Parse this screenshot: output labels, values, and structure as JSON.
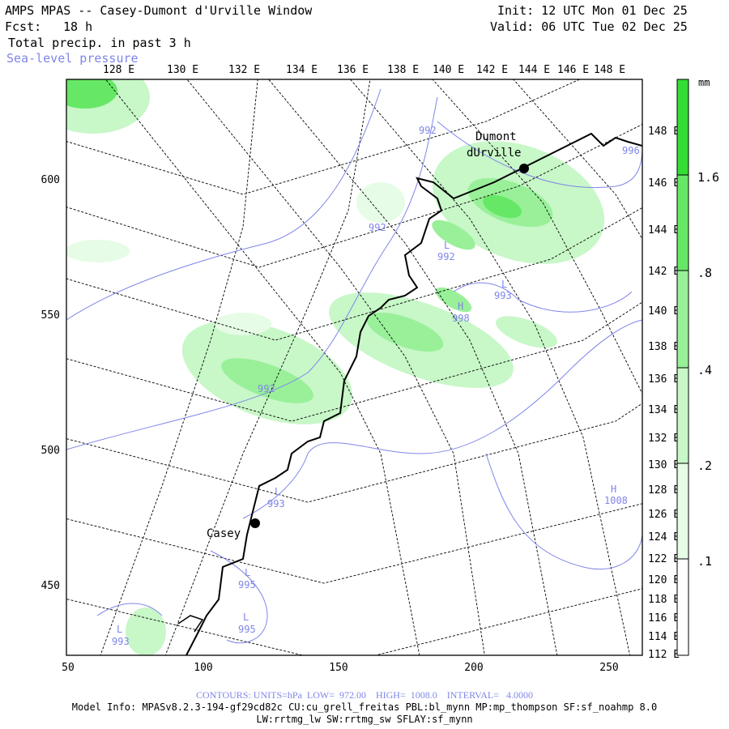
{
  "header": {
    "title": "AMPS MPAS -- Casey-Dumont d'Urville Window",
    "fcst_label": "Fcst:",
    "fcst_value": "18 h",
    "field": "Total precip. in past 3 h",
    "overlay": "Sea-level pressure",
    "init": "Init: 12 UTC Mon 01 Dec 25",
    "valid": "Valid: 06 UTC Tue 02 Dec 25"
  },
  "top_axis": [
    "128 E",
    "130 E",
    "132 E",
    "134 E",
    "136 E",
    "138 E",
    "140 E",
    "142 E",
    "144 E",
    "146 E",
    "148 E"
  ],
  "right_axis": [
    "148 E",
    "146 E",
    "144 E",
    "142 E",
    "140 E",
    "138 E",
    "136 E",
    "134 E",
    "132 E",
    "130 E",
    "128 E",
    "126 E",
    "124 E",
    "122 E",
    "120 E",
    "118 E",
    "116 E",
    "114 E",
    "112 E"
  ],
  "left_axis": [
    "600",
    "550",
    "500",
    "450"
  ],
  "bottom_axis": [
    "50",
    "100",
    "150",
    "200",
    "250"
  ],
  "colorbar": {
    "unit": "mm",
    "labels": [
      "1.6",
      ".8",
      ".4",
      ".2",
      ".1"
    ],
    "colors": [
      "#33dd33",
      "#66e866",
      "#99f099",
      "#c8f7c8",
      "#e6fce6",
      "#ffffff"
    ]
  },
  "stations": [
    "Casey",
    "Dumont",
    "dUrville"
  ],
  "contour_labels": [
    "992",
    "992",
    "992",
    "993",
    "998",
    "992",
    "993",
    "1008",
    "995",
    "995",
    "993",
    "996"
  ],
  "pressure_centers": [
    "L",
    "L",
    "H",
    "L",
    "L",
    "H",
    "L",
    "L"
  ],
  "footer": {
    "contours": "CONTOURS: UNITS=hPa  LOW=  972.00    HIGH=  1008.0    INTERVAL=   4.0000",
    "model_info": "Model Info: MPASv8.2.3-194-gf29cd82c CU:cu_grell_freitas PBL:bl_mynn MP:mp_thompson SF:sf_noahmp 8.0",
    "physics": "LW:rrtmg_lw SW:rrtmg_sw SFLAY:sf_mynn"
  }
}
